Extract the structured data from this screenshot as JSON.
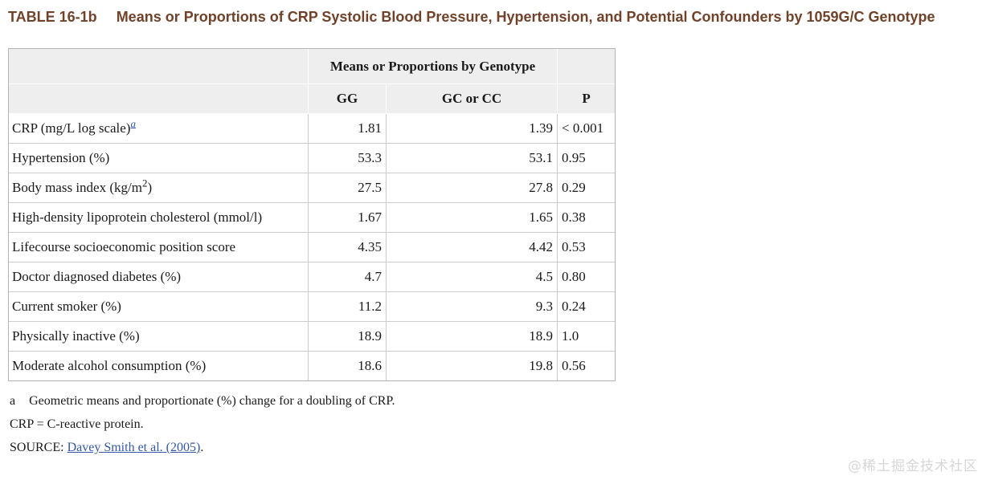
{
  "header": {
    "table_label": "TABLE 16-1b",
    "title": "Means or Proportions of CRP Systolic Blood Pressure, Hypertension, and Potential Confounders by 1059G/C Genotype"
  },
  "table": {
    "span_header": "Means or Proportions by Genotype",
    "columns": [
      "GG",
      "GC or CC",
      "P"
    ],
    "rows": [
      {
        "label": [
          {
            "t": "CRP (mg/L log scale)"
          },
          {
            "t": "a",
            "sup": true,
            "link": true
          }
        ],
        "values": [
          "1.81",
          "1.39",
          "< 0.001"
        ]
      },
      {
        "label": [
          {
            "t": "Hypertension (%)"
          }
        ],
        "values": [
          "53.3",
          "53.1",
          "0.95"
        ]
      },
      {
        "label": [
          {
            "t": "Body mass index (kg/m"
          },
          {
            "t": "2",
            "sup": true
          },
          {
            "t": ")"
          }
        ],
        "values": [
          "27.5",
          "27.8",
          "0.29"
        ]
      },
      {
        "label": [
          {
            "t": "High-density lipoprotein cholesterol (mmol/l)"
          }
        ],
        "values": [
          "1.67",
          "1.65",
          "0.38"
        ]
      },
      {
        "label": [
          {
            "t": "Lifecourse socioeconomic position score"
          }
        ],
        "values": [
          "4.35",
          "4.42",
          "0.53"
        ]
      },
      {
        "label": [
          {
            "t": "Doctor diagnosed diabetes (%)"
          }
        ],
        "values": [
          "4.7",
          "4.5",
          "0.80"
        ]
      },
      {
        "label": [
          {
            "t": "Current smoker (%)"
          }
        ],
        "values": [
          "11.2",
          "9.3",
          "0.24"
        ]
      },
      {
        "label": [
          {
            "t": "Physically inactive (%)"
          }
        ],
        "values": [
          "18.9",
          "18.9",
          "1.0"
        ]
      },
      {
        "label": [
          {
            "t": "Moderate alcohol consumption (%)"
          }
        ],
        "values": [
          "18.6",
          "19.8",
          "0.56"
        ]
      }
    ]
  },
  "footnotes": {
    "a_marker": "a",
    "a_text": "Geometric means and proportionate (%) change for a doubling of CRP.",
    "crp_definition": "CRP = C-reactive protein.",
    "source_label": "SOURCE: ",
    "source_link": "Davey Smith et al. (2005)",
    "source_suffix": "."
  },
  "watermark": {
    "text": "@稀土掘金技术社区"
  },
  "colors": {
    "title_brown": "#70422a",
    "link_blue": "#3457a6",
    "header_bg": "#eeeeee",
    "border_outer": "#b3b3b3",
    "border_inner": "#cccccc",
    "watermark_gray": "#d6d6d6"
  }
}
